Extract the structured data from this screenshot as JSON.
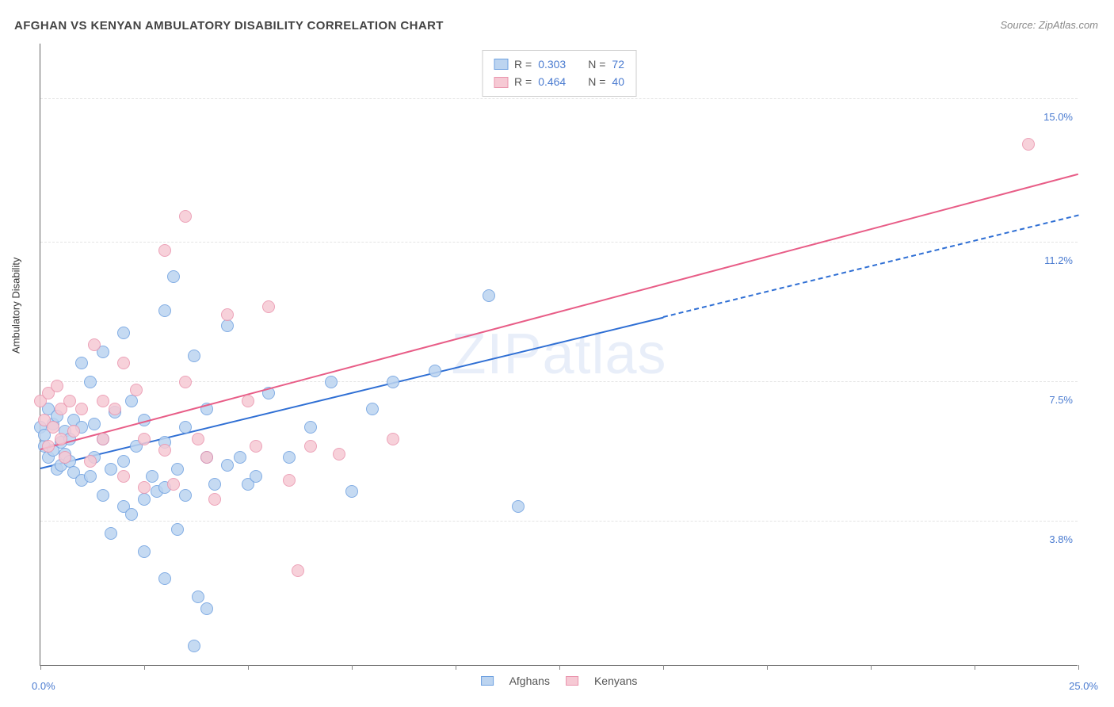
{
  "title": "AFGHAN VS KENYAN AMBULATORY DISABILITY CORRELATION CHART",
  "source": "Source: ZipAtlas.com",
  "watermark": "ZIPatlas",
  "y_axis_label": "Ambulatory Disability",
  "x_range": [
    0.0,
    25.0
  ],
  "y_range": [
    0.0,
    16.5
  ],
  "x_min_label": "0.0%",
  "x_max_label": "25.0%",
  "y_ticks": [
    {
      "v": 3.8,
      "label": "3.8%"
    },
    {
      "v": 7.5,
      "label": "7.5%"
    },
    {
      "v": 11.2,
      "label": "11.2%"
    },
    {
      "v": 15.0,
      "label": "15.0%"
    }
  ],
  "x_tick_positions": [
    0,
    2.5,
    5,
    7.5,
    10,
    12.5,
    15,
    17.5,
    20,
    22.5,
    25
  ],
  "series": [
    {
      "name": "Afghans",
      "color_fill": "#bcd4f0",
      "color_stroke": "#6ea0e0",
      "line_color": "#2f6fd4",
      "R": "0.303",
      "N": "72",
      "marker_radius": 8,
      "trend": {
        "x1": 0.0,
        "y1": 5.2,
        "x2": 15.0,
        "y2": 9.2
      },
      "trend_ext": {
        "x1": 15.0,
        "y1": 9.2,
        "x2": 25.0,
        "y2": 11.9
      },
      "points": [
        [
          0.0,
          6.3
        ],
        [
          0.1,
          5.8
        ],
        [
          0.1,
          6.1
        ],
        [
          0.2,
          5.5
        ],
        [
          0.2,
          6.8
        ],
        [
          0.3,
          5.7
        ],
        [
          0.3,
          6.4
        ],
        [
          0.4,
          5.2
        ],
        [
          0.4,
          6.6
        ],
        [
          0.5,
          5.9
        ],
        [
          0.5,
          5.3
        ],
        [
          0.6,
          6.2
        ],
        [
          0.6,
          5.6
        ],
        [
          0.7,
          6.0
        ],
        [
          0.7,
          5.4
        ],
        [
          0.8,
          6.5
        ],
        [
          0.8,
          5.1
        ],
        [
          1.0,
          4.9
        ],
        [
          1.0,
          6.3
        ],
        [
          1.0,
          8.0
        ],
        [
          1.2,
          5.0
        ],
        [
          1.2,
          7.5
        ],
        [
          1.3,
          6.4
        ],
        [
          1.3,
          5.5
        ],
        [
          1.5,
          4.5
        ],
        [
          1.5,
          8.3
        ],
        [
          1.5,
          6.0
        ],
        [
          1.7,
          3.5
        ],
        [
          1.7,
          5.2
        ],
        [
          1.8,
          6.7
        ],
        [
          2.0,
          4.2
        ],
        [
          2.0,
          5.4
        ],
        [
          2.0,
          8.8
        ],
        [
          2.2,
          7.0
        ],
        [
          2.2,
          4.0
        ],
        [
          2.3,
          5.8
        ],
        [
          2.5,
          4.4
        ],
        [
          2.5,
          6.5
        ],
        [
          2.5,
          3.0
        ],
        [
          2.7,
          5.0
        ],
        [
          2.8,
          4.6
        ],
        [
          3.0,
          2.3
        ],
        [
          3.0,
          9.4
        ],
        [
          3.0,
          5.9
        ],
        [
          3.0,
          4.7
        ],
        [
          3.2,
          10.3
        ],
        [
          3.3,
          5.2
        ],
        [
          3.3,
          3.6
        ],
        [
          3.5,
          6.3
        ],
        [
          3.5,
          4.5
        ],
        [
          3.7,
          8.2
        ],
        [
          3.7,
          0.5
        ],
        [
          3.8,
          1.8
        ],
        [
          4.0,
          5.5
        ],
        [
          4.0,
          1.5
        ],
        [
          4.0,
          6.8
        ],
        [
          4.2,
          4.8
        ],
        [
          4.5,
          9.0
        ],
        [
          4.5,
          5.3
        ],
        [
          4.8,
          5.5
        ],
        [
          5.0,
          4.8
        ],
        [
          5.2,
          5.0
        ],
        [
          5.5,
          7.2
        ],
        [
          6.0,
          5.5
        ],
        [
          6.5,
          6.3
        ],
        [
          7.0,
          7.5
        ],
        [
          7.5,
          4.6
        ],
        [
          8.0,
          6.8
        ],
        [
          8.5,
          7.5
        ],
        [
          9.5,
          7.8
        ],
        [
          10.8,
          9.8
        ],
        [
          11.5,
          4.2
        ]
      ]
    },
    {
      "name": "Kenyans",
      "color_fill": "#f6c9d4",
      "color_stroke": "#ea94ad",
      "line_color": "#e85d87",
      "R": "0.464",
      "N": "40",
      "marker_radius": 8,
      "trend": {
        "x1": 0.0,
        "y1": 5.7,
        "x2": 25.0,
        "y2": 13.0
      },
      "points": [
        [
          0.0,
          7.0
        ],
        [
          0.1,
          6.5
        ],
        [
          0.2,
          7.2
        ],
        [
          0.2,
          5.8
        ],
        [
          0.3,
          6.3
        ],
        [
          0.4,
          7.4
        ],
        [
          0.5,
          6.0
        ],
        [
          0.5,
          6.8
        ],
        [
          0.6,
          5.5
        ],
        [
          0.7,
          7.0
        ],
        [
          0.8,
          6.2
        ],
        [
          1.0,
          6.8
        ],
        [
          1.2,
          5.4
        ],
        [
          1.3,
          8.5
        ],
        [
          1.5,
          7.0
        ],
        [
          1.5,
          6.0
        ],
        [
          1.8,
          6.8
        ],
        [
          2.0,
          8.0
        ],
        [
          2.0,
          5.0
        ],
        [
          2.3,
          7.3
        ],
        [
          2.5,
          6.0
        ],
        [
          2.5,
          4.7
        ],
        [
          3.0,
          5.7
        ],
        [
          3.0,
          11.0
        ],
        [
          3.2,
          4.8
        ],
        [
          3.5,
          7.5
        ],
        [
          3.5,
          11.9
        ],
        [
          3.8,
          6.0
        ],
        [
          4.0,
          5.5
        ],
        [
          4.2,
          4.4
        ],
        [
          4.5,
          9.3
        ],
        [
          5.0,
          7.0
        ],
        [
          5.2,
          5.8
        ],
        [
          5.5,
          9.5
        ],
        [
          6.0,
          4.9
        ],
        [
          6.2,
          2.5
        ],
        [
          6.5,
          5.8
        ],
        [
          7.2,
          5.6
        ],
        [
          8.5,
          6.0
        ],
        [
          23.8,
          13.8
        ]
      ]
    }
  ],
  "legend_bottom": [
    {
      "label": "Afghans",
      "fill": "#bcd4f0",
      "stroke": "#6ea0e0"
    },
    {
      "label": "Kenyans",
      "fill": "#f6c9d4",
      "stroke": "#ea94ad"
    }
  ]
}
